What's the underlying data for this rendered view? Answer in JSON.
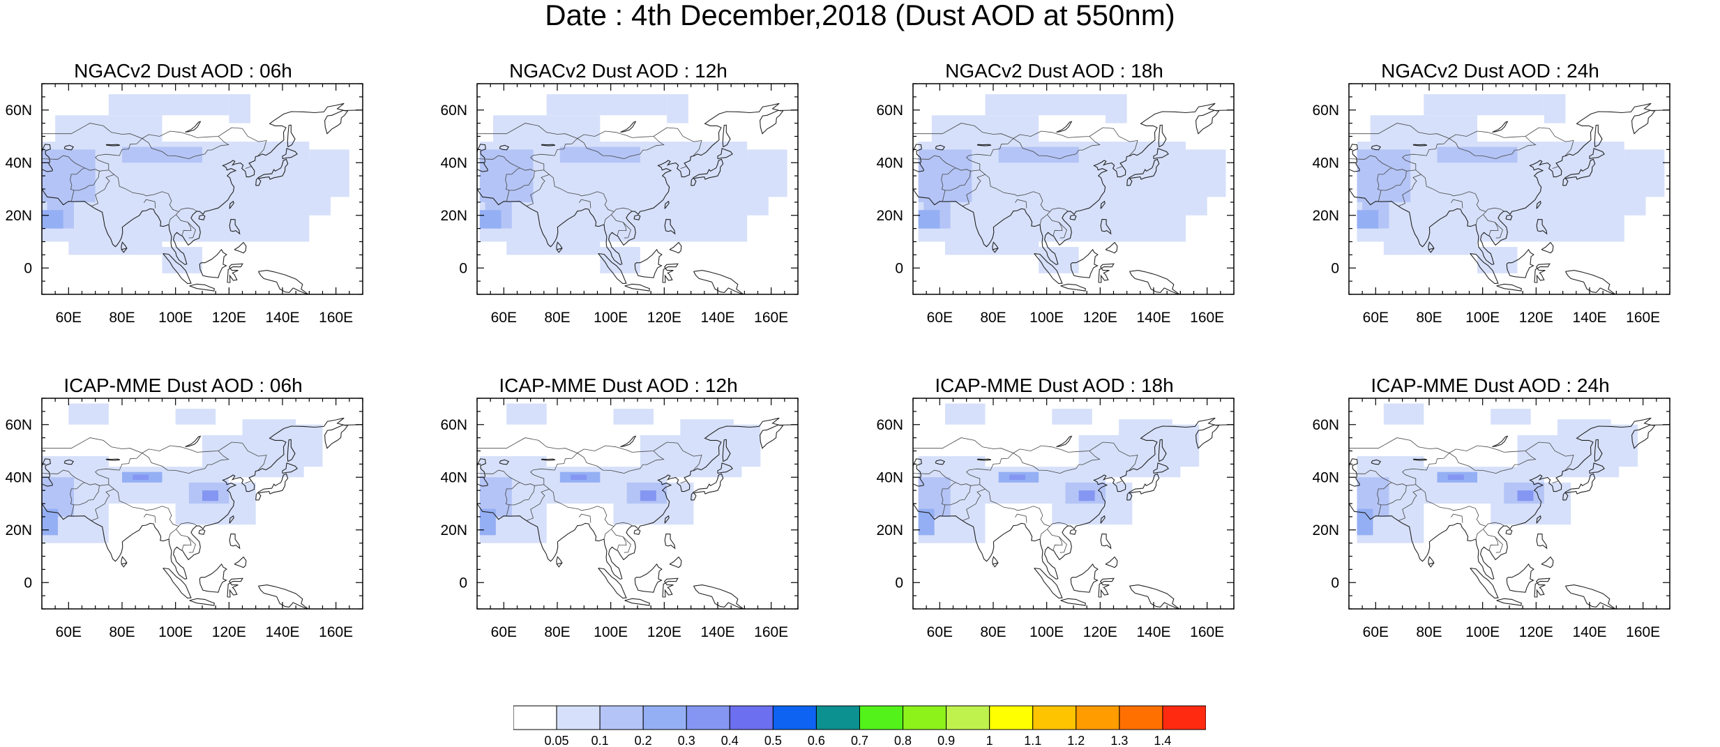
{
  "title": "Date : 4th December,2018 (Dust AOD at 550nm)",
  "lon_ticks": [
    "60E",
    "80E",
    "100E",
    "120E",
    "140E",
    "160E"
  ],
  "lat_ticks": [
    "60N",
    "40N",
    "20N",
    "0"
  ],
  "map_extent": {
    "lon": [
      50,
      170
    ],
    "lat": [
      -10,
      70
    ]
  },
  "panels": [
    {
      "title": "NGACv2 Dust AOD : 06h",
      "model": "NGACv2",
      "hour": "06h"
    },
    {
      "title": "NGACv2 Dust AOD : 12h",
      "model": "NGACv2",
      "hour": "12h"
    },
    {
      "title": "NGACv2 Dust AOD : 18h",
      "model": "NGACv2",
      "hour": "18h"
    },
    {
      "title": "NGACv2 Dust AOD : 24h",
      "model": "NGACv2",
      "hour": "24h"
    },
    {
      "title": "ICAP-MME Dust AOD : 06h",
      "model": "ICAP-MME",
      "hour": "06h"
    },
    {
      "title": "ICAP-MME Dust AOD : 12h",
      "model": "ICAP-MME",
      "hour": "12h"
    },
    {
      "title": "ICAP-MME Dust AOD : 18h",
      "model": "ICAP-MME",
      "hour": "18h"
    },
    {
      "title": "ICAP-MME Dust AOD : 24h",
      "model": "ICAP-MME",
      "hour": "24h"
    }
  ],
  "colorbar": {
    "labels": [
      "0.05",
      "0.1",
      "0.2",
      "0.3",
      "0.4",
      "0.5",
      "0.6",
      "0.7",
      "0.8",
      "0.9",
      "1",
      "1.1",
      "1.2",
      "1.3",
      "1.4"
    ],
    "colors": [
      "#ffffff",
      "#d6e0fa",
      "#b4c4f6",
      "#94aff4",
      "#8496f2",
      "#6b6ff0",
      "#0e63f2",
      "#0c9090",
      "#52f21a",
      "#8cf21a",
      "#c0f24e",
      "#ffff00",
      "#ffc400",
      "#ff9c00",
      "#ff7000",
      "#ff2a10"
    ]
  }
}
